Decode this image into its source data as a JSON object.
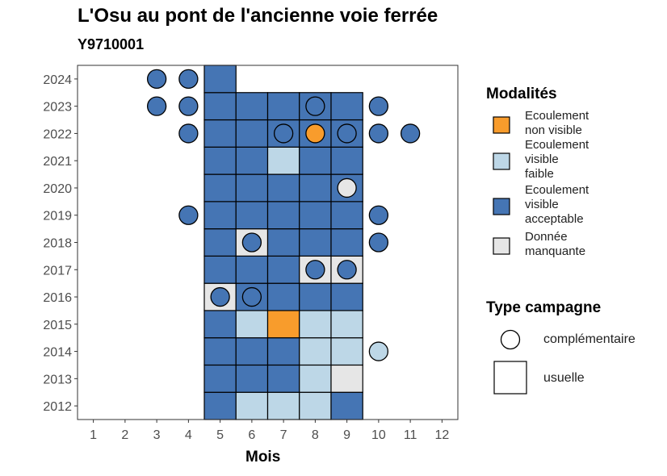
{
  "chart_data": {
    "type": "heatmap",
    "title": "L'Osu au pont de l'ancienne voie ferrée",
    "subtitle": "Y9710001",
    "xlabel": "Mois",
    "ylabel": "",
    "x_ticks": [
      1,
      2,
      3,
      4,
      5,
      6,
      7,
      8,
      9,
      10,
      11,
      12
    ],
    "y_ticks": [
      2012,
      2013,
      2014,
      2015,
      2016,
      2017,
      2018,
      2019,
      2020,
      2021,
      2022,
      2023,
      2024
    ],
    "xlim": [
      0.5,
      12.5
    ],
    "ylim": [
      2011.5,
      2024.5
    ],
    "grid": false,
    "colors": {
      "Ecoulement non visible": "#F89C2C",
      "Ecoulement visible faible": "#BDD7E7",
      "Ecoulement visible acceptable": "#4575B4",
      "Donnée manquante": "#E6E6E6"
    },
    "usuelle": [
      {
        "year": 2012,
        "month": 5,
        "mod": "Ecoulement visible acceptable"
      },
      {
        "year": 2012,
        "month": 6,
        "mod": "Ecoulement visible faible"
      },
      {
        "year": 2012,
        "month": 7,
        "mod": "Ecoulement visible faible"
      },
      {
        "year": 2012,
        "month": 8,
        "mod": "Ecoulement visible faible"
      },
      {
        "year": 2012,
        "month": 9,
        "mod": "Ecoulement visible acceptable"
      },
      {
        "year": 2013,
        "month": 5,
        "mod": "Ecoulement visible acceptable"
      },
      {
        "year": 2013,
        "month": 6,
        "mod": "Ecoulement visible acceptable"
      },
      {
        "year": 2013,
        "month": 7,
        "mod": "Ecoulement visible acceptable"
      },
      {
        "year": 2013,
        "month": 8,
        "mod": "Ecoulement visible faible"
      },
      {
        "year": 2013,
        "month": 9,
        "mod": "Donnée manquante"
      },
      {
        "year": 2014,
        "month": 5,
        "mod": "Ecoulement visible acceptable"
      },
      {
        "year": 2014,
        "month": 6,
        "mod": "Ecoulement visible acceptable"
      },
      {
        "year": 2014,
        "month": 7,
        "mod": "Ecoulement visible acceptable"
      },
      {
        "year": 2014,
        "month": 8,
        "mod": "Ecoulement visible faible"
      },
      {
        "year": 2014,
        "month": 9,
        "mod": "Ecoulement visible faible"
      },
      {
        "year": 2015,
        "month": 5,
        "mod": "Ecoulement visible acceptable"
      },
      {
        "year": 2015,
        "month": 6,
        "mod": "Ecoulement visible faible"
      },
      {
        "year": 2015,
        "month": 7,
        "mod": "Ecoulement non visible"
      },
      {
        "year": 2015,
        "month": 8,
        "mod": "Ecoulement visible faible"
      },
      {
        "year": 2015,
        "month": 9,
        "mod": "Ecoulement visible faible"
      },
      {
        "year": 2016,
        "month": 5,
        "mod": "Donnée manquante"
      },
      {
        "year": 2016,
        "month": 6,
        "mod": "Ecoulement visible acceptable"
      },
      {
        "year": 2016,
        "month": 7,
        "mod": "Ecoulement visible acceptable"
      },
      {
        "year": 2016,
        "month": 8,
        "mod": "Ecoulement visible acceptable"
      },
      {
        "year": 2016,
        "month": 9,
        "mod": "Ecoulement visible acceptable"
      },
      {
        "year": 2017,
        "month": 5,
        "mod": "Ecoulement visible acceptable"
      },
      {
        "year": 2017,
        "month": 6,
        "mod": "Ecoulement visible acceptable"
      },
      {
        "year": 2017,
        "month": 7,
        "mod": "Ecoulement visible acceptable"
      },
      {
        "year": 2017,
        "month": 8,
        "mod": "Donnée manquante"
      },
      {
        "year": 2017,
        "month": 9,
        "mod": "Donnée manquante"
      },
      {
        "year": 2018,
        "month": 5,
        "mod": "Ecoulement visible acceptable"
      },
      {
        "year": 2018,
        "month": 6,
        "mod": "Donnée manquante"
      },
      {
        "year": 2018,
        "month": 7,
        "mod": "Ecoulement visible acceptable"
      },
      {
        "year": 2018,
        "month": 8,
        "mod": "Ecoulement visible acceptable"
      },
      {
        "year": 2018,
        "month": 9,
        "mod": "Ecoulement visible acceptable"
      },
      {
        "year": 2019,
        "month": 5,
        "mod": "Ecoulement visible acceptable"
      },
      {
        "year": 2019,
        "month": 6,
        "mod": "Ecoulement visible acceptable"
      },
      {
        "year": 2019,
        "month": 7,
        "mod": "Ecoulement visible acceptable"
      },
      {
        "year": 2019,
        "month": 8,
        "mod": "Ecoulement visible acceptable"
      },
      {
        "year": 2019,
        "month": 9,
        "mod": "Ecoulement visible acceptable"
      },
      {
        "year": 2020,
        "month": 5,
        "mod": "Ecoulement visible acceptable"
      },
      {
        "year": 2020,
        "month": 6,
        "mod": "Ecoulement visible acceptable"
      },
      {
        "year": 2020,
        "month": 7,
        "mod": "Ecoulement visible acceptable"
      },
      {
        "year": 2020,
        "month": 8,
        "mod": "Ecoulement visible acceptable"
      },
      {
        "year": 2020,
        "month": 9,
        "mod": "Ecoulement visible acceptable"
      },
      {
        "year": 2021,
        "month": 5,
        "mod": "Ecoulement visible acceptable"
      },
      {
        "year": 2021,
        "month": 6,
        "mod": "Ecoulement visible acceptable"
      },
      {
        "year": 2021,
        "month": 7,
        "mod": "Ecoulement visible faible"
      },
      {
        "year": 2021,
        "month": 8,
        "mod": "Ecoulement visible acceptable"
      },
      {
        "year": 2021,
        "month": 9,
        "mod": "Ecoulement visible acceptable"
      },
      {
        "year": 2022,
        "month": 5,
        "mod": "Ecoulement visible acceptable"
      },
      {
        "year": 2022,
        "month": 6,
        "mod": "Ecoulement visible acceptable"
      },
      {
        "year": 2022,
        "month": 7,
        "mod": "Ecoulement visible acceptable"
      },
      {
        "year": 2022,
        "month": 8,
        "mod": "Ecoulement visible acceptable"
      },
      {
        "year": 2022,
        "month": 9,
        "mod": "Ecoulement visible acceptable"
      },
      {
        "year": 2023,
        "month": 5,
        "mod": "Ecoulement visible acceptable"
      },
      {
        "year": 2023,
        "month": 6,
        "mod": "Ecoulement visible acceptable"
      },
      {
        "year": 2023,
        "month": 7,
        "mod": "Ecoulement visible acceptable"
      },
      {
        "year": 2023,
        "month": 8,
        "mod": "Ecoulement visible acceptable"
      },
      {
        "year": 2023,
        "month": 9,
        "mod": "Ecoulement visible acceptable"
      },
      {
        "year": 2024,
        "month": 5,
        "mod": "Ecoulement visible acceptable"
      }
    ],
    "complementaire": [
      {
        "year": 2024,
        "month": 3,
        "mod": "Ecoulement visible acceptable"
      },
      {
        "year": 2024,
        "month": 4,
        "mod": "Ecoulement visible acceptable"
      },
      {
        "year": 2023,
        "month": 3,
        "mod": "Ecoulement visible acceptable"
      },
      {
        "year": 2023,
        "month": 4,
        "mod": "Ecoulement visible acceptable"
      },
      {
        "year": 2023,
        "month": 8,
        "mod": "Ecoulement visible acceptable"
      },
      {
        "year": 2023,
        "month": 10,
        "mod": "Ecoulement visible acceptable"
      },
      {
        "year": 2022,
        "month": 4,
        "mod": "Ecoulement visible acceptable"
      },
      {
        "year": 2022,
        "month": 7,
        "mod": "Ecoulement visible acceptable"
      },
      {
        "year": 2022,
        "month": 8,
        "mod": "Ecoulement non visible"
      },
      {
        "year": 2022,
        "month": 9,
        "mod": "Ecoulement visible acceptable"
      },
      {
        "year": 2022,
        "month": 10,
        "mod": "Ecoulement visible acceptable"
      },
      {
        "year": 2022,
        "month": 11,
        "mod": "Ecoulement visible acceptable"
      },
      {
        "year": 2020,
        "month": 9,
        "mod": "Donnée manquante"
      },
      {
        "year": 2019,
        "month": 4,
        "mod": "Ecoulement visible acceptable"
      },
      {
        "year": 2019,
        "month": 10,
        "mod": "Ecoulement visible acceptable"
      },
      {
        "year": 2018,
        "month": 6,
        "mod": "Ecoulement visible acceptable"
      },
      {
        "year": 2018,
        "month": 10,
        "mod": "Ecoulement visible acceptable"
      },
      {
        "year": 2017,
        "month": 8,
        "mod": "Ecoulement visible acceptable"
      },
      {
        "year": 2017,
        "month": 9,
        "mod": "Ecoulement visible acceptable"
      },
      {
        "year": 2016,
        "month": 5,
        "mod": "Ecoulement visible acceptable"
      },
      {
        "year": 2016,
        "month": 6,
        "mod": "Ecoulement visible acceptable"
      },
      {
        "year": 2014,
        "month": 10,
        "mod": "Ecoulement visible faible"
      }
    ],
    "legend": {
      "placement": "right",
      "modalites_title": "Modalités",
      "modalites": [
        {
          "lines": [
            "Ecoulement",
            "non visible"
          ],
          "key": "Ecoulement non visible"
        },
        {
          "lines": [
            "Ecoulement",
            "visible",
            "faible"
          ],
          "key": "Ecoulement visible faible"
        },
        {
          "lines": [
            "Ecoulement",
            "visible",
            "acceptable"
          ],
          "key": "Ecoulement visible acceptable"
        },
        {
          "lines": [
            "Donnée",
            "manquante"
          ],
          "key": "Donnée manquante"
        }
      ],
      "type_title": "Type campagne",
      "types": [
        "complémentaire",
        "usuelle"
      ]
    }
  }
}
